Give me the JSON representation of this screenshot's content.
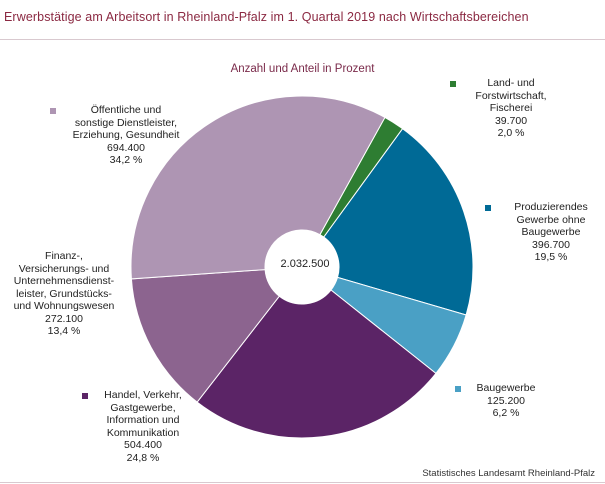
{
  "chart_data": {
    "type": "pie",
    "donut": true,
    "title": "Erwerbstätige am Arbeitsort in Rheinland-Pfalz im 1. Quartal 2019 nach Wirtschaftsbereichen",
    "subtitle": "Anzahl und Anteil in Prozent",
    "total_label": "2.032.500",
    "source": "Statistisches Landesamt Rheinland-Pfalz",
    "slices": [
      {
        "name": "Land- und Forstwirtschaft, Fischerei",
        "label_lines": [
          "Land- und",
          "Forstwirtschaft,",
          "Fischerei"
        ],
        "value": 39700,
        "value_label": "39.700",
        "percent": 2.0,
        "percent_label": "2,0 %",
        "color": "#2e7d32"
      },
      {
        "name": "Produzierendes Gewerbe ohne Baugewerbe",
        "label_lines": [
          "Produzierendes",
          "Gewerbe ohne",
          "Baugewerbe"
        ],
        "value": 396700,
        "value_label": "396.700",
        "percent": 19.5,
        "percent_label": "19,5 %",
        "color": "#006a96"
      },
      {
        "name": "Baugewerbe",
        "label_lines": [
          "Baugewerbe"
        ],
        "value": 125200,
        "value_label": "125.200",
        "percent": 6.2,
        "percent_label": "6,2 %",
        "color": "#4aa0c5"
      },
      {
        "name": "Handel, Verkehr, Gastgewerbe, Information und Kommunikation",
        "label_lines": [
          "Handel, Verkehr,",
          "Gastgewerbe,",
          "Information und",
          "Kommunikation"
        ],
        "value": 504400,
        "value_label": "504.400",
        "percent": 24.8,
        "percent_label": "24,8 %",
        "color": "#5b2466"
      },
      {
        "name": "Finanz-, Versicherungs- und Unternehmensdienstleister, Grundstücks- und Wohnungswesen",
        "label_lines": [
          "Finanz-,",
          "Versicherungs- und",
          "Unternehmensdienst-",
          "leister, Grundstücks-",
          "und Wohnungswesen"
        ],
        "value": 272100,
        "value_label": "272.100",
        "percent": 13.4,
        "percent_label": "13,4 %",
        "color": "#8c648f"
      },
      {
        "name": "Öffentliche und sonstige Dienstleister, Erziehung, Gesundheit",
        "label_lines": [
          "Öffentliche und",
          "sonstige Dienstleister,",
          "Erziehung, Gesundheit"
        ],
        "value": 694400,
        "value_label": "694.400",
        "percent": 34.2,
        "percent_label": "34,2 %",
        "color": "#ae95b3"
      }
    ]
  }
}
